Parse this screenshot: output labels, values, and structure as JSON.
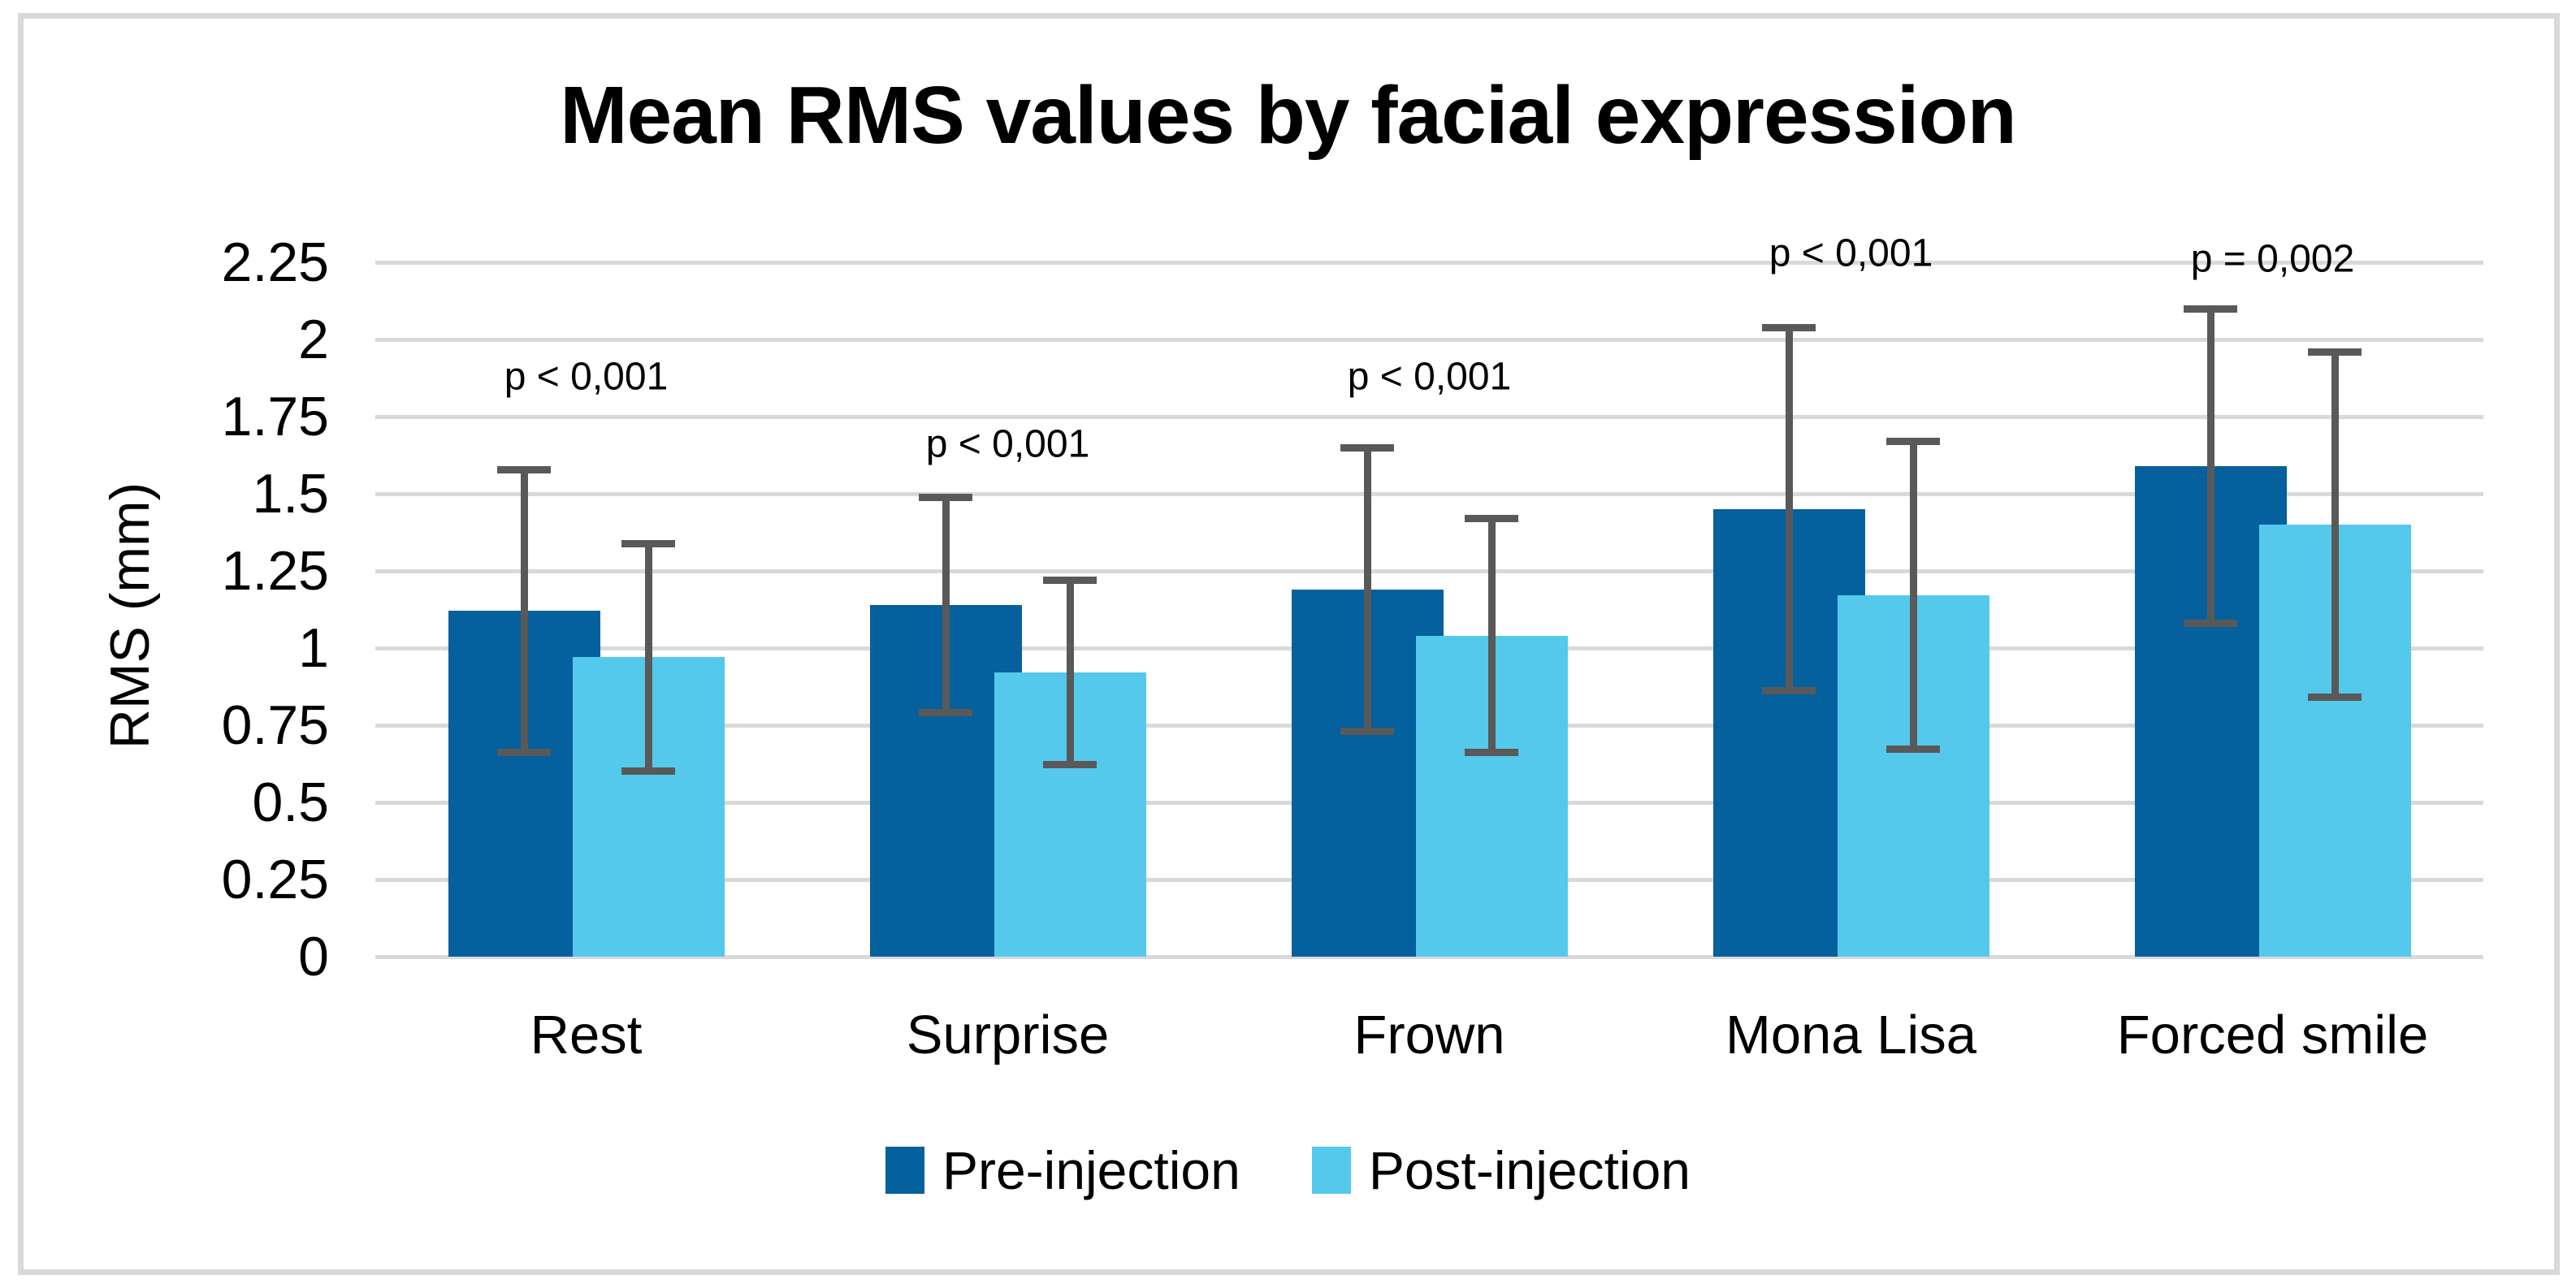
{
  "title": "Mean RMS values by facial expression",
  "ylabel": "RMS (mm)",
  "colors": {
    "pre": "#05609E",
    "post": "#54C9EC",
    "error_bar": "#595959",
    "gridline": "#D9D9D9",
    "frame": "#D9D9D9",
    "text": "#000000"
  },
  "chart_data": {
    "type": "bar",
    "title": "Mean RMS values by facial expression",
    "xlabel": "",
    "ylabel": "RMS (mm)",
    "categories": [
      "Rest",
      "Surprise",
      "Frown",
      "Mona Lisa",
      "Forced smile"
    ],
    "series": [
      {
        "name": "Pre-injection",
        "values": [
          1.12,
          1.14,
          1.19,
          1.45,
          1.59
        ],
        "error_low": [
          0.66,
          0.79,
          0.73,
          0.86,
          1.08
        ],
        "error_high": [
          1.58,
          1.49,
          1.65,
          2.04,
          2.1
        ]
      },
      {
        "name": "Post-injection",
        "values": [
          0.97,
          0.92,
          1.04,
          1.17,
          1.4
        ],
        "error_low": [
          0.6,
          0.62,
          0.66,
          0.67,
          0.84
        ],
        "error_high": [
          1.34,
          1.22,
          1.42,
          1.67,
          1.96
        ]
      }
    ],
    "p_labels": [
      {
        "text": "p < 0,001",
        "y": 1.88
      },
      {
        "text": "p < 0,001",
        "y": 1.66
      },
      {
        "text": "p < 0,001",
        "y": 1.88
      },
      {
        "text": "p < 0,001",
        "y": 2.28
      },
      {
        "text": "p = 0,002",
        "y": 2.26
      }
    ],
    "y_ticks": [
      "2.25",
      "2",
      "1.75",
      "1.5",
      "1.25",
      "1",
      "0.75",
      "0.5",
      "0.25",
      "0"
    ],
    "ylim": [
      0,
      2.25
    ],
    "grid": true,
    "legend_position": "bottom"
  }
}
